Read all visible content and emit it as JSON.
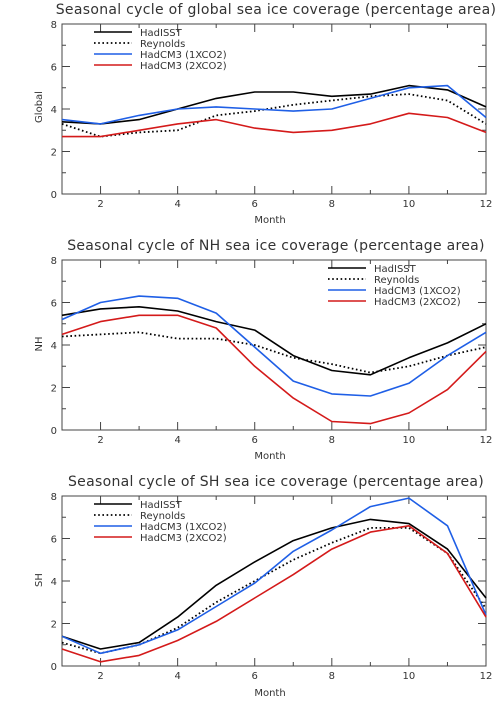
{
  "chart_data": [
    {
      "type": "line",
      "title": "Seasonal cycle of global sea ice coverage (percentage area)",
      "xlabel": "Month",
      "ylabel": "Global",
      "xlim": [
        1,
        12
      ],
      "ylim": [
        0,
        8
      ],
      "xticks": [
        2,
        4,
        6,
        8,
        10,
        12
      ],
      "yticks": [
        0,
        2,
        4,
        6,
        8
      ],
      "legend": "top-left",
      "x": [
        1,
        2,
        3,
        4,
        5,
        6,
        7,
        8,
        9,
        10,
        11,
        12
      ],
      "series": [
        {
          "name": "HadISST",
          "color": "#000000",
          "dash": "solid",
          "values": [
            3.4,
            3.3,
            3.5,
            4.0,
            4.5,
            4.8,
            4.8,
            4.6,
            4.7,
            5.1,
            4.9,
            4.1
          ]
        },
        {
          "name": "Reynolds",
          "color": "#000000",
          "dash": "dotted",
          "values": [
            3.3,
            2.7,
            2.9,
            3.0,
            3.7,
            3.9,
            4.2,
            4.4,
            4.6,
            4.7,
            4.4,
            3.3
          ]
        },
        {
          "name": "HadCM3 (1XCO2)",
          "color": "#1f5fe6",
          "dash": "solid",
          "values": [
            3.5,
            3.3,
            3.7,
            4.0,
            4.1,
            4.0,
            3.9,
            4.0,
            4.5,
            5.0,
            5.1,
            3.6
          ]
        },
        {
          "name": "HadCM3 (2XCO2)",
          "color": "#d41a1a",
          "dash": "solid",
          "values": [
            2.7,
            2.7,
            3.0,
            3.3,
            3.5,
            3.1,
            2.9,
            3.0,
            3.3,
            3.8,
            3.6,
            2.9
          ]
        }
      ]
    },
    {
      "type": "line",
      "title": "Seasonal cycle of NH sea ice coverage (percentage area)",
      "xlabel": "Month",
      "ylabel": "NH",
      "xlim": [
        1,
        12
      ],
      "ylim": [
        0,
        8
      ],
      "xticks": [
        2,
        4,
        6,
        8,
        10,
        12
      ],
      "yticks": [
        0,
        2,
        4,
        6,
        8
      ],
      "legend": "top-right",
      "x": [
        1,
        2,
        3,
        4,
        5,
        6,
        7,
        8,
        9,
        10,
        11,
        12
      ],
      "series": [
        {
          "name": "HadISST",
          "color": "#000000",
          "dash": "solid",
          "values": [
            5.4,
            5.7,
            5.8,
            5.6,
            5.1,
            4.7,
            3.5,
            2.8,
            2.6,
            3.4,
            4.1,
            5.0
          ]
        },
        {
          "name": "Reynolds",
          "color": "#000000",
          "dash": "dotted",
          "values": [
            4.4,
            4.5,
            4.6,
            4.3,
            4.3,
            4.0,
            3.4,
            3.1,
            2.7,
            3.0,
            3.5,
            3.9
          ]
        },
        {
          "name": "HadCM3 (1XCO2)",
          "color": "#1f5fe6",
          "dash": "solid",
          "values": [
            5.2,
            6.0,
            6.3,
            6.2,
            5.5,
            3.9,
            2.3,
            1.7,
            1.6,
            2.2,
            3.5,
            4.6
          ]
        },
        {
          "name": "HadCM3 (2XCO2)",
          "color": "#d41a1a",
          "dash": "solid",
          "values": [
            4.5,
            5.1,
            5.4,
            5.4,
            4.8,
            3.0,
            1.5,
            0.4,
            0.3,
            0.8,
            1.9,
            3.7
          ]
        }
      ]
    },
    {
      "type": "line",
      "title": "Seasonal cycle of SH sea ice coverage (percentage area)",
      "xlabel": "Month",
      "ylabel": "SH",
      "xlim": [
        1,
        12
      ],
      "ylim": [
        0,
        8
      ],
      "xticks": [
        2,
        4,
        6,
        8,
        10,
        12
      ],
      "yticks": [
        0,
        2,
        4,
        6,
        8
      ],
      "legend": "top-left",
      "x": [
        1,
        2,
        3,
        4,
        5,
        6,
        7,
        8,
        9,
        10,
        11,
        12
      ],
      "series": [
        {
          "name": "HadISST",
          "color": "#000000",
          "dash": "solid",
          "values": [
            1.4,
            0.8,
            1.1,
            2.3,
            3.8,
            4.9,
            5.9,
            6.5,
            6.9,
            6.7,
            5.5,
            3.2
          ]
        },
        {
          "name": "Reynolds",
          "color": "#000000",
          "dash": "dotted",
          "values": [
            1.1,
            0.6,
            1.0,
            1.8,
            3.0,
            4.0,
            5.0,
            5.8,
            6.5,
            6.5,
            5.3,
            2.7
          ]
        },
        {
          "name": "HadCM3 (1XCO2)",
          "color": "#1f5fe6",
          "dash": "solid",
          "values": [
            1.4,
            0.6,
            1.0,
            1.7,
            2.8,
            3.9,
            5.4,
            6.4,
            7.5,
            7.9,
            6.6,
            2.4
          ]
        },
        {
          "name": "HadCM3 (2XCO2)",
          "color": "#d41a1a",
          "dash": "solid",
          "values": [
            0.8,
            0.2,
            0.5,
            1.2,
            2.1,
            3.2,
            4.3,
            5.5,
            6.3,
            6.6,
            5.3,
            2.3
          ]
        }
      ]
    }
  ]
}
